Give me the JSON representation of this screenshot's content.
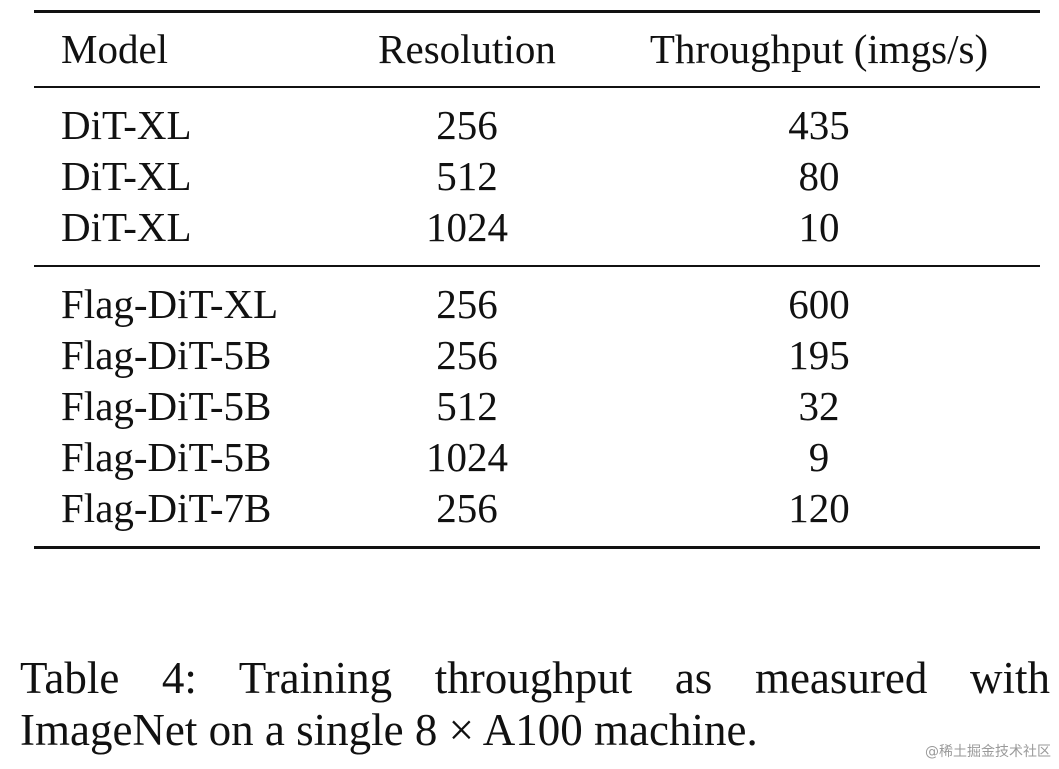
{
  "table": {
    "headers": {
      "model": "Model",
      "resolution": "Resolution",
      "throughput": "Throughput (imgs/s)"
    },
    "group1": [
      {
        "model": "DiT-XL",
        "resolution": "256",
        "throughput": "435"
      },
      {
        "model": "DiT-XL",
        "resolution": "512",
        "throughput": "80"
      },
      {
        "model": "DiT-XL",
        "resolution": "1024",
        "throughput": "10"
      }
    ],
    "group2": [
      {
        "model": "Flag-DiT-XL",
        "resolution": "256",
        "throughput": "600"
      },
      {
        "model": "Flag-DiT-5B",
        "resolution": "256",
        "throughput": "195"
      },
      {
        "model": "Flag-DiT-5B",
        "resolution": "512",
        "throughput": "32"
      },
      {
        "model": "Flag-DiT-5B",
        "resolution": "1024",
        "throughput": "9"
      },
      {
        "model": "Flag-DiT-7B",
        "resolution": "256",
        "throughput": "120"
      }
    ]
  },
  "caption": {
    "line1": "Table 4: Training throughput as measured with",
    "line2": "ImageNet on a single 8 × A100 machine."
  },
  "watermark": "@稀土掘金技术社区"
}
